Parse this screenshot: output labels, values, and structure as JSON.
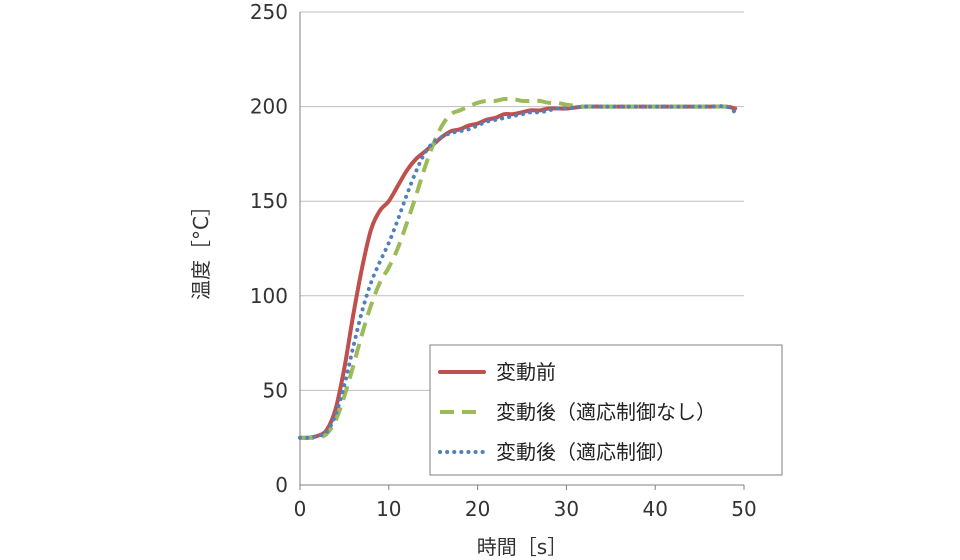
{
  "chart_data": {
    "type": "line",
    "xlabel": "時間［s］",
    "ylabel": "温度［°C］",
    "xlim": [
      0,
      50
    ],
    "ylim": [
      0,
      250
    ],
    "xticks": [
      0,
      10,
      20,
      30,
      40,
      50
    ],
    "yticks": [
      0,
      50,
      100,
      150,
      200,
      250
    ],
    "grid": "horizontal",
    "legend_position": "bottom-right",
    "series": [
      {
        "name": "変動前",
        "color": "#c0504d",
        "style": "solid",
        "x": [
          0,
          1,
          2,
          3,
          4,
          5,
          6,
          7,
          8,
          9,
          10,
          11,
          12,
          13,
          14,
          15,
          16,
          17,
          18,
          19,
          20,
          21,
          22,
          23,
          24,
          25,
          26,
          27,
          28,
          29,
          30,
          32,
          34,
          36,
          38,
          40,
          42,
          44,
          46,
          48,
          49
        ],
        "y": [
          25,
          25,
          26,
          29,
          40,
          62,
          90,
          115,
          135,
          145,
          150,
          158,
          166,
          172,
          176,
          180,
          184,
          187,
          188,
          190,
          191,
          193,
          194,
          196,
          196,
          197,
          198,
          198,
          199,
          199,
          199,
          200,
          200,
          200,
          200,
          200,
          200,
          200,
          200,
          200,
          199
        ]
      },
      {
        "name": "変動後（適応制御なし）",
        "color": "#9bbb59",
        "style": "dashed",
        "x": [
          0,
          1,
          2,
          3,
          4,
          5,
          6,
          7,
          8,
          9,
          10,
          11,
          12,
          13,
          14,
          15,
          16,
          17,
          18,
          19,
          20,
          21,
          22,
          23,
          24,
          25,
          26,
          27,
          28,
          29,
          30,
          32,
          34,
          36,
          38,
          40,
          42,
          44,
          46,
          48,
          49
        ],
        "y": [
          25,
          25,
          25,
          27,
          34,
          47,
          63,
          80,
          95,
          107,
          115,
          125,
          138,
          152,
          167,
          180,
          190,
          196,
          198,
          200,
          202,
          203,
          203,
          204,
          204,
          203,
          203,
          203,
          202,
          202,
          201,
          200,
          200,
          200,
          200,
          200,
          200,
          200,
          200,
          200,
          200
        ]
      },
      {
        "name": "変動後（適応制御）",
        "color": "#4f81bd",
        "style": "dotted",
        "x": [
          0,
          1,
          2,
          3,
          4,
          5,
          6,
          7,
          8,
          9,
          10,
          11,
          12,
          13,
          14,
          15,
          16,
          17,
          18,
          19,
          20,
          21,
          22,
          23,
          24,
          25,
          26,
          27,
          28,
          29,
          30,
          32,
          34,
          36,
          38,
          40,
          42,
          44,
          46,
          48,
          49
        ],
        "y": [
          25,
          25,
          26,
          28,
          37,
          53,
          73,
          92,
          107,
          118,
          128,
          140,
          153,
          165,
          175,
          181,
          184,
          186,
          187,
          188,
          190,
          192,
          193,
          194,
          195,
          196,
          197,
          197,
          198,
          199,
          199,
          200,
          200,
          200,
          200,
          200,
          200,
          200,
          200,
          200,
          197
        ]
      }
    ]
  }
}
